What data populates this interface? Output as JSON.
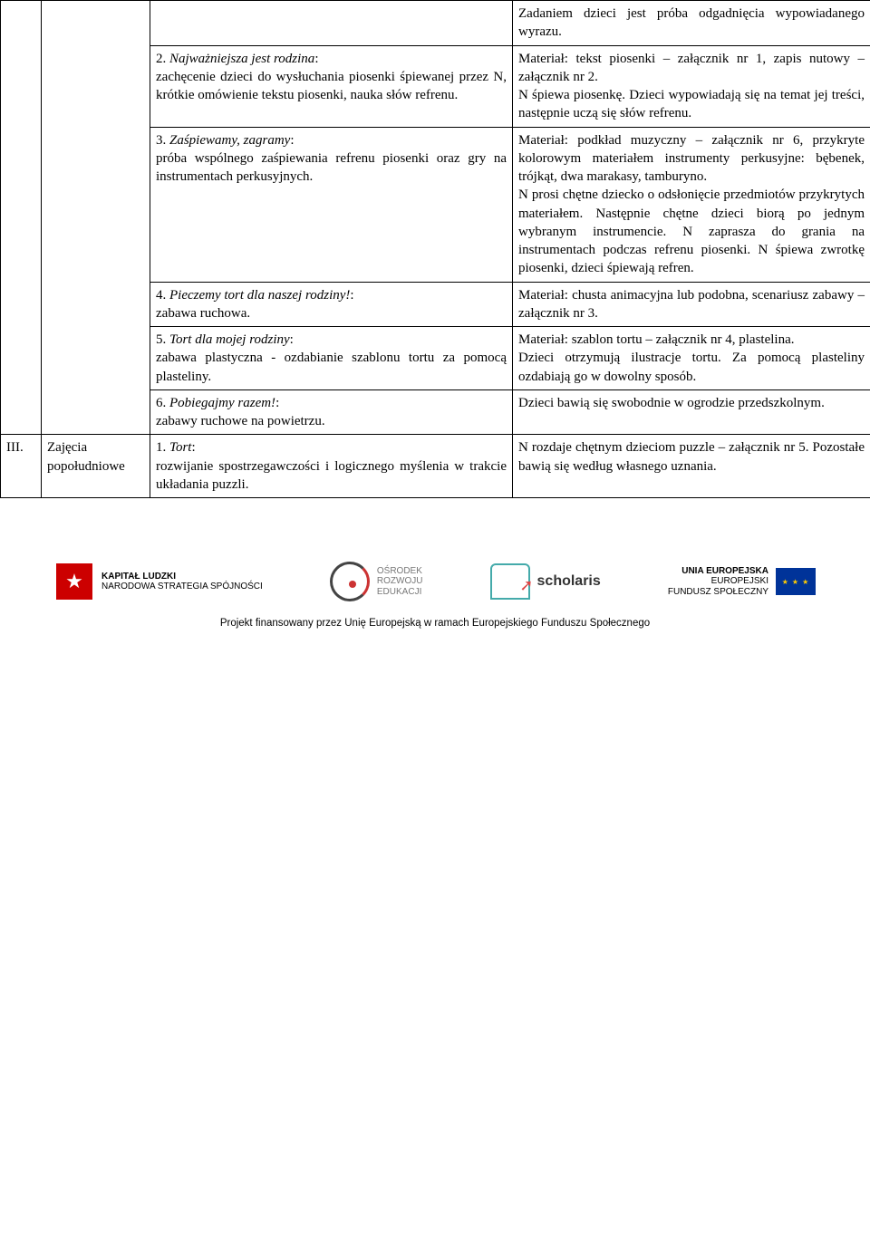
{
  "rows": [
    {
      "numCell": "",
      "partCell": "",
      "leftBlocks": [
        "",
        "2. <i>Najważniejsza jest rodzina</i>:<br>zachęcenie dzieci do wysłuchania piosenki śpiewanej przez N, krótkie omówienie tekstu piosenki, nauka słów refrenu.",
        "3. <i>Zaśpiewamy, zagramy</i>:<br>próba wspólnego zaśpiewania refrenu piosenki oraz gry na instrumentach perkusyjnych.",
        "4. <i>Pieczemy tort dla naszej rodziny!</i>:<br>zabawa ruchowa.",
        "5. <i>Tort dla mojej rodziny</i>:<br>zabawa plastyczna - ozdabianie szablonu tortu za pomocą plasteliny.",
        "6. <i>Pobiegajmy razem!</i>:<br>zabawy ruchowe na powietrzu."
      ],
      "rightBlocks": [
        "Zadaniem dzieci jest próba odgadnięcia wypowiadanego wyrazu.",
        "Materiał: tekst piosenki – załącznik nr 1, zapis nutowy – załącznik nr 2.<br>N śpiewa piosenkę. Dzieci wypowiadają się na temat jej treści, następnie uczą się słów refrenu.",
        "Materiał: podkład muzyczny – załącznik nr 6, przykryte kolorowym materiałem instrumenty perkusyjne: bębenek, trójkąt, dwa marakasy, tamburyno.<br>N prosi chętne dziecko o odsłonięcie przedmiotów przykrytych materiałem. Następnie chętne dzieci biorą po jednym wybranym instrumencie. N zaprasza do grania na instrumentach podczas refrenu piosenki. N śpiewa zwrotkę piosenki, dzieci śpiewają refren.",
        "Materiał: chusta animacyjna lub podobna, scenariusz zabawy – załącznik nr 3.",
        "Materiał: szablon tortu – załącznik nr 4, plastelina.<br>Dzieci otrzymują ilustracje tortu. Za pomocą plasteliny ozdabiają go w dowolny sposób.",
        "Dzieci bawią się swobodnie w ogrodzie przedszkolnym."
      ]
    },
    {
      "numCell": "III.",
      "partCell": "Zajęcia popołudniowe",
      "leftBlocks": [
        "1. <i>Tort</i>:<br>rozwijanie spostrzegawczości i logicznego myślenia w trakcie układania puzzli."
      ],
      "rightBlocks": [
        "N rozdaje chętnym dzieciom puzzle – załącznik nr 5. Pozostałe bawią się według własnego uznania."
      ]
    }
  ],
  "logos": {
    "kapital_top": "KAPITAŁ LUDZKI",
    "kapital_bottom": "NARODOWA STRATEGIA SPÓJNOŚCI",
    "ore_top": "OŚRODEK",
    "ore_mid": "ROZWOJU",
    "ore_bot": "EDUKACJI",
    "scholaris": "scholaris",
    "ue_top": "UNIA EUROPEJSKA",
    "ue_mid": "EUROPEJSKI",
    "ue_bot": "FUNDUSZ SPOŁECZNY"
  },
  "footer_line": "Projekt finansowany przez Unię Europejską w ramach Europejskiego Funduszu Społecznego"
}
